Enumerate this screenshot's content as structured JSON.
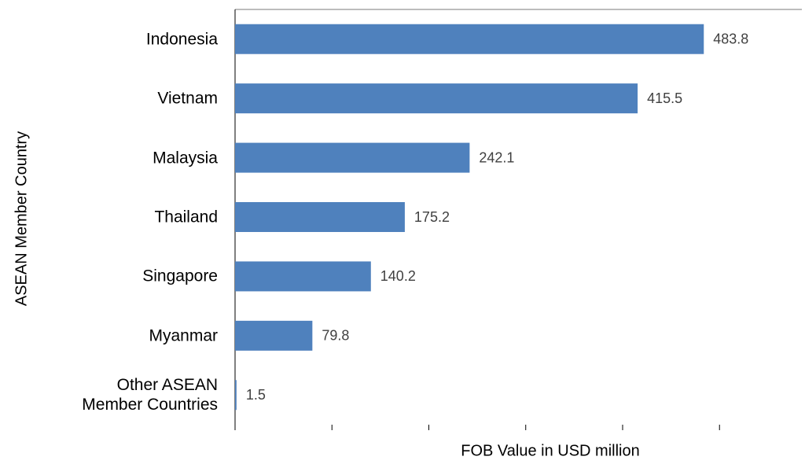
{
  "chart_data": {
    "type": "hbar",
    "x_label": "FOB Value in USD million",
    "y_label": "ASEAN Member Country",
    "categories": [
      "Indonesia",
      "Vietnam",
      "Malaysia",
      "Thailand",
      "Singapore",
      "Myanmar",
      "Other ASEAN Member Countries"
    ],
    "values": [
      483.8,
      415.5,
      242.1,
      175.2,
      140.2,
      79.8,
      1.5
    ],
    "color": "#4f81bd",
    "xlim": [
      0,
      585
    ],
    "xticks": [
      0,
      100,
      200,
      300,
      400,
      500
    ]
  }
}
